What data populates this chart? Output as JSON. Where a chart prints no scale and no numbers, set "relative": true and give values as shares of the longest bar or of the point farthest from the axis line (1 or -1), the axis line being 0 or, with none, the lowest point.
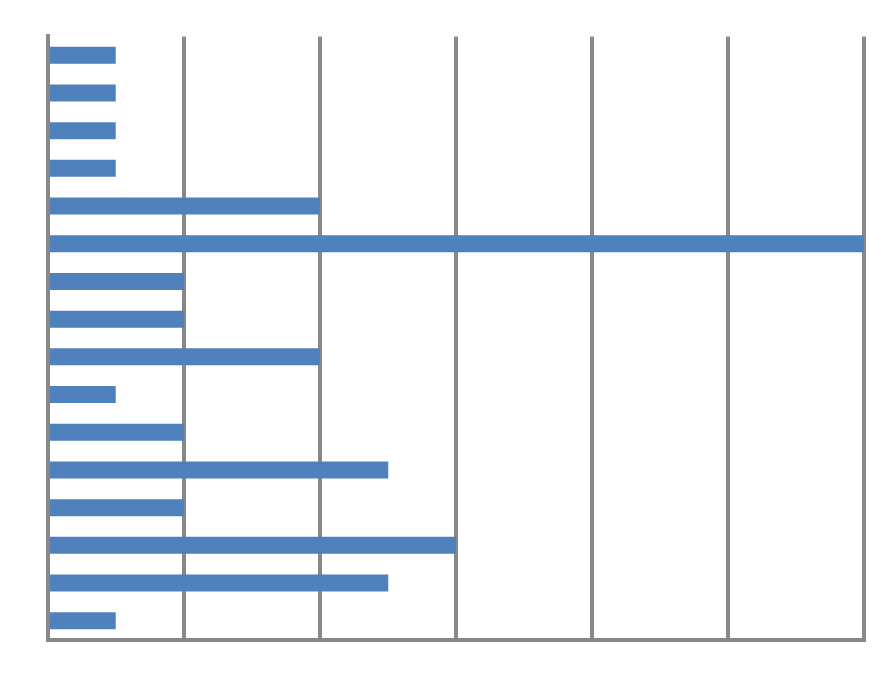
{
  "chart_data": {
    "type": "bar",
    "orientation": "horizontal",
    "relative": true,
    "categories": [
      null,
      null,
      null,
      null,
      null,
      null,
      null,
      null,
      null,
      null,
      null,
      null,
      null,
      null,
      null,
      null
    ],
    "values": [
      0.083,
      0.083,
      0.083,
      0.083,
      0.333,
      1,
      0.167,
      0.167,
      0.333,
      0.083,
      0.167,
      0.417,
      0.167,
      0.5,
      0.417,
      0.083
    ],
    "color": "#4f81bd",
    "grid": "x",
    "legend": false
  }
}
